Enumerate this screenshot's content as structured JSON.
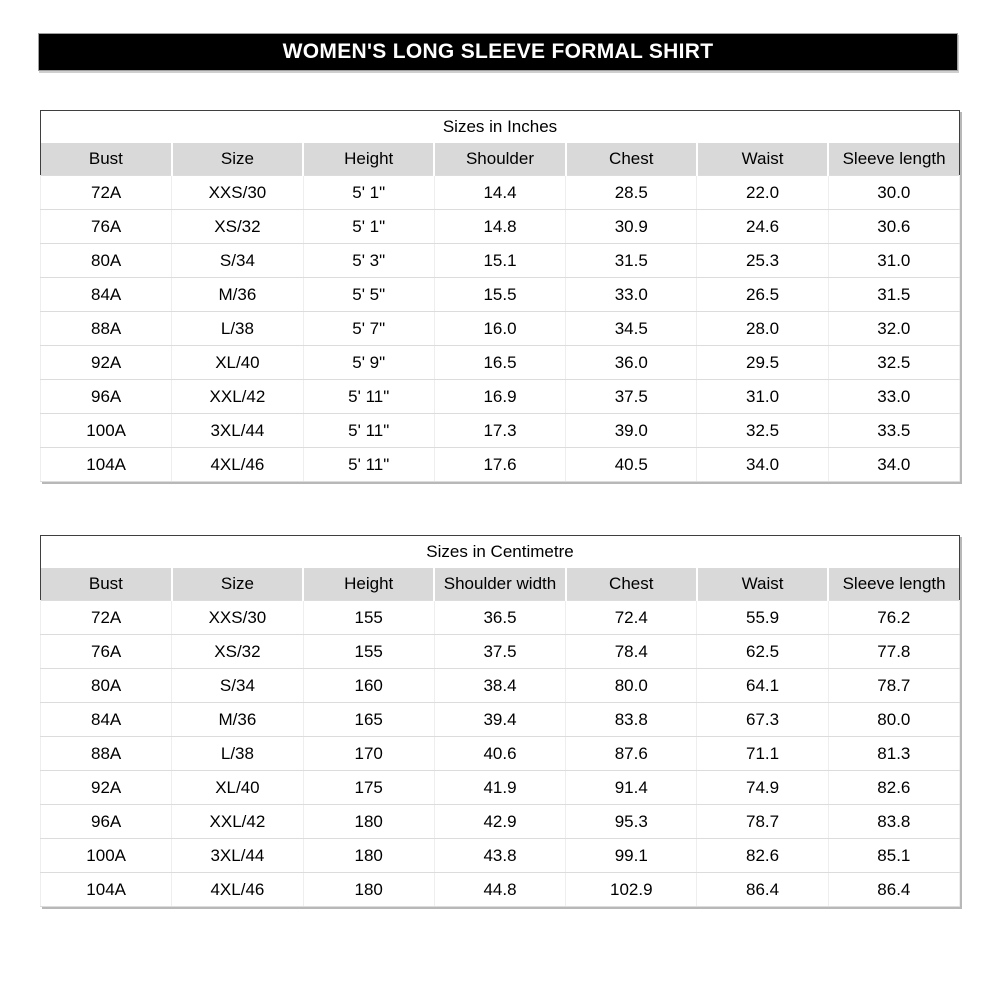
{
  "banner": {
    "text": "WOMEN'S LONG SLEEVE FORMAL SHIRT",
    "bg_color": "#000000",
    "text_color": "#ffffff"
  },
  "colors": {
    "header_row_bg": "#d9d9d9",
    "table_outer_border": "#3f3f3f",
    "row_divider": "#dcdcdc",
    "shadow": "#b8b8b8"
  },
  "tables": [
    {
      "title": "Sizes in Inches",
      "columns": [
        "Bust",
        "Size",
        "Height",
        "Shoulder",
        "Chest",
        "Waist",
        "Sleeve length"
      ],
      "rows": [
        [
          "72A",
          "XXS/30",
          "5' 1\"",
          "14.4",
          "28.5",
          "22.0",
          "30.0"
        ],
        [
          "76A",
          "XS/32",
          "5' 1\"",
          "14.8",
          "30.9",
          "24.6",
          "30.6"
        ],
        [
          "80A",
          "S/34",
          "5' 3\"",
          "15.1",
          "31.5",
          "25.3",
          "31.0"
        ],
        [
          "84A",
          "M/36",
          "5' 5\"",
          "15.5",
          "33.0",
          "26.5",
          "31.5"
        ],
        [
          "88A",
          "L/38",
          "5' 7\"",
          "16.0",
          "34.5",
          "28.0",
          "32.0"
        ],
        [
          "92A",
          "XL/40",
          "5' 9\"",
          "16.5",
          "36.0",
          "29.5",
          "32.5"
        ],
        [
          "96A",
          "XXL/42",
          "5' 11\"",
          "16.9",
          "37.5",
          "31.0",
          "33.0"
        ],
        [
          "100A",
          "3XL/44",
          "5' 11\"",
          "17.3",
          "39.0",
          "32.5",
          "33.5"
        ],
        [
          "104A",
          "4XL/46",
          "5' 11\"",
          "17.6",
          "40.5",
          "34.0",
          "34.0"
        ]
      ]
    },
    {
      "title": "Sizes in Centimetre",
      "columns": [
        "Bust",
        "Size",
        "Height",
        "Shoulder width",
        "Chest",
        "Waist",
        "Sleeve length"
      ],
      "rows": [
        [
          "72A",
          "XXS/30",
          "155",
          "36.5",
          "72.4",
          "55.9",
          "76.2"
        ],
        [
          "76A",
          "XS/32",
          "155",
          "37.5",
          "78.4",
          "62.5",
          "77.8"
        ],
        [
          "80A",
          "S/34",
          "160",
          "38.4",
          "80.0",
          "64.1",
          "78.7"
        ],
        [
          "84A",
          "M/36",
          "165",
          "39.4",
          "83.8",
          "67.3",
          "80.0"
        ],
        [
          "88A",
          "L/38",
          "170",
          "40.6",
          "87.6",
          "71.1",
          "81.3"
        ],
        [
          "92A",
          "XL/40",
          "175",
          "41.9",
          "91.4",
          "74.9",
          "82.6"
        ],
        [
          "96A",
          "XXL/42",
          "180",
          "42.9",
          "95.3",
          "78.7",
          "83.8"
        ],
        [
          "100A",
          "3XL/44",
          "180",
          "43.8",
          "99.1",
          "82.6",
          "85.1"
        ],
        [
          "104A",
          "4XL/46",
          "180",
          "44.8",
          "102.9",
          "86.4",
          "86.4"
        ]
      ]
    }
  ]
}
